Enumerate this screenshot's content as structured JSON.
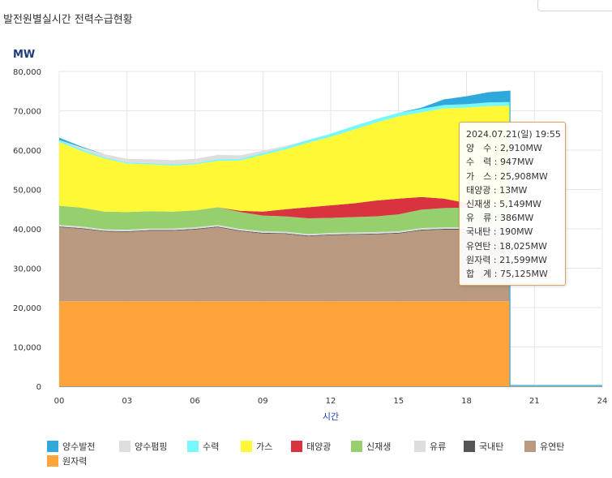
{
  "page_title": "발전원별실시간 전력수급현황",
  "chart_data": {
    "type": "area",
    "stacked": true,
    "unit_label": "MW",
    "xlabel": "시간",
    "ylabel": "MW",
    "ylim": [
      0,
      80000
    ],
    "xlim": [
      0,
      24
    ],
    "y_ticks": [
      0,
      10000,
      20000,
      30000,
      40000,
      50000,
      60000,
      70000,
      80000
    ],
    "y_tick_labels": [
      "0",
      "10,000",
      "20,000",
      "30,000",
      "40,000",
      "50,000",
      "60,000",
      "70,000",
      "80,000"
    ],
    "x_ticks": [
      0,
      3,
      6,
      9,
      12,
      15,
      18,
      21,
      24
    ],
    "x_tick_labels": [
      "00",
      "03",
      "06",
      "09",
      "12",
      "15",
      "18",
      "21",
      "24"
    ],
    "grid": true,
    "legend_position": "bottom",
    "x": [
      0,
      1,
      2,
      3,
      4,
      5,
      6,
      7,
      8,
      9,
      10,
      11,
      12,
      13,
      14,
      15,
      16,
      17,
      18,
      19,
      19.92
    ],
    "series": [
      {
        "name": "원자력",
        "color": "#ffa43a",
        "values": [
          21600,
          21600,
          21600,
          21600,
          21600,
          21600,
          21600,
          21600,
          21600,
          21600,
          21600,
          21600,
          21600,
          21600,
          21600,
          21600,
          21600,
          21600,
          21600,
          21600,
          21599
        ]
      },
      {
        "name": "유연탄",
        "color": "#b99a80",
        "values": [
          18800,
          18400,
          17700,
          17600,
          17900,
          17900,
          18200,
          18800,
          17800,
          17200,
          17100,
          16500,
          16800,
          16900,
          17000,
          17200,
          18000,
          18200,
          18200,
          18100,
          18025
        ]
      },
      {
        "name": "국내탄",
        "color": "#555555",
        "values": [
          190,
          190,
          190,
          190,
          190,
          190,
          190,
          190,
          190,
          190,
          190,
          190,
          190,
          190,
          190,
          190,
          190,
          190,
          190,
          190,
          190
        ]
      },
      {
        "name": "유류",
        "color": "#dddddd",
        "values": [
          390,
          390,
          390,
          390,
          390,
          390,
          390,
          390,
          390,
          390,
          390,
          390,
          390,
          390,
          390,
          390,
          390,
          390,
          390,
          390,
          386
        ]
      },
      {
        "name": "신재생",
        "color": "#96cf6e",
        "values": [
          4900,
          4800,
          4500,
          4500,
          4400,
          4300,
          4300,
          4500,
          4300,
          4000,
          3900,
          4000,
          3800,
          3900,
          4000,
          4300,
          4700,
          4900,
          5000,
          5100,
          5149
        ]
      },
      {
        "name": "태양광",
        "color": "#d9333f",
        "values": [
          0,
          0,
          0,
          0,
          0,
          0,
          0,
          0,
          300,
          1000,
          1800,
          2800,
          3200,
          3500,
          4000,
          4000,
          3200,
          2400,
          1200,
          200,
          13
        ]
      },
      {
        "name": "가스",
        "color": "#fff837",
        "values": [
          16200,
          14400,
          13500,
          12300,
          11900,
          11700,
          11700,
          11800,
          12800,
          14400,
          15200,
          16400,
          17400,
          18700,
          19800,
          20900,
          21500,
          22900,
          24200,
          25600,
          25908
        ]
      },
      {
        "name": "수력",
        "color": "#75f8ff",
        "values": [
          500,
          400,
          300,
          300,
          300,
          300,
          300,
          400,
          400,
          500,
          600,
          700,
          800,
          900,
          900,
          900,
          900,
          900,
          900,
          950,
          947
        ]
      },
      {
        "name": "양수펌핑",
        "color": "#dedede",
        "values": [
          0,
          500,
          800,
          900,
          1000,
          1100,
          1100,
          1100,
          900,
          600,
          300,
          0,
          0,
          0,
          0,
          0,
          0,
          0,
          0,
          0,
          0
        ]
      },
      {
        "name": "양수발전",
        "color": "#2fa9dc",
        "values": [
          600,
          200,
          0,
          0,
          0,
          0,
          0,
          0,
          0,
          0,
          0,
          0,
          0,
          0,
          0,
          0,
          300,
          1400,
          2000,
          2600,
          2910
        ]
      }
    ],
    "tooltip": {
      "title": "2024.07.21(일) 19:55",
      "rows": [
        {
          "label": "양　수",
          "value": "2,910MW"
        },
        {
          "label": "수　력",
          "value": "947MW"
        },
        {
          "label": "가　스",
          "value": "25,908MW"
        },
        {
          "label": "태양광",
          "value": "13MW"
        },
        {
          "label": "신재생",
          "value": "5,149MW"
        },
        {
          "label": "유　류",
          "value": "386MW"
        },
        {
          "label": "국내탄",
          "value": "190MW"
        },
        {
          "label": "유연탄",
          "value": "18,025MW"
        },
        {
          "label": "원자력",
          "value": "21,599MW"
        },
        {
          "label": "합　계",
          "value": "75,125MW"
        }
      ]
    },
    "legend": [
      {
        "name": "양수발전",
        "color": "#2fa9dc"
      },
      {
        "name": "양수펌핑",
        "color": "#dedede"
      },
      {
        "name": "수력",
        "color": "#75f8ff"
      },
      {
        "name": "가스",
        "color": "#fff837"
      },
      {
        "name": "태양광",
        "color": "#d9333f"
      },
      {
        "name": "신재생",
        "color": "#96cf6e"
      },
      {
        "name": "유류",
        "color": "#dddddd"
      },
      {
        "name": "국내탄",
        "color": "#555555"
      },
      {
        "name": "유연탄",
        "color": "#b99a80"
      },
      {
        "name": "원자력",
        "color": "#ffa43a"
      }
    ]
  }
}
